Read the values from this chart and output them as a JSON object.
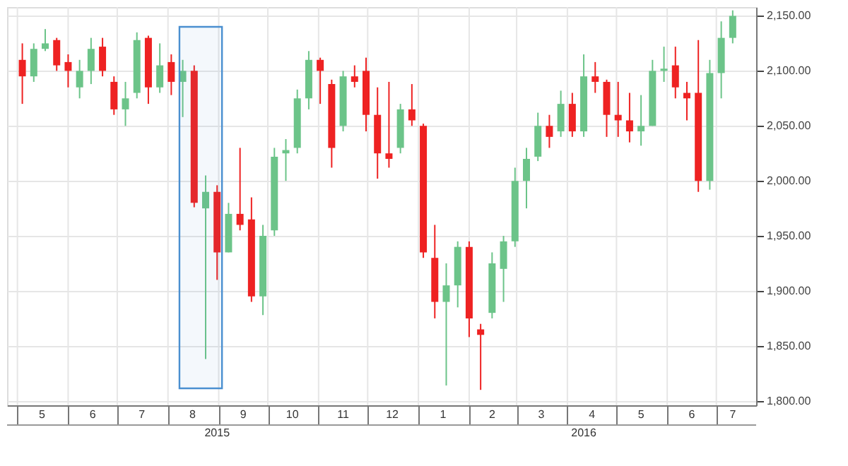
{
  "chart_data": {
    "type": "candlestick",
    "x": [
      "2015-05-04",
      "2015-05-11",
      "2015-05-18",
      "2015-05-25",
      "2015-06-01",
      "2015-06-08",
      "2015-06-15",
      "2015-06-22",
      "2015-06-29",
      "2015-07-06",
      "2015-07-13",
      "2015-07-20",
      "2015-07-27",
      "2015-08-03",
      "2015-08-10",
      "2015-08-17",
      "2015-08-24",
      "2015-08-31",
      "2015-09-07",
      "2015-09-14",
      "2015-09-21",
      "2015-09-28",
      "2015-10-05",
      "2015-10-12",
      "2015-10-19",
      "2015-10-26",
      "2015-11-02",
      "2015-11-09",
      "2015-11-16",
      "2015-11-23",
      "2015-11-30",
      "2015-12-07",
      "2015-12-14",
      "2015-12-21",
      "2015-12-28",
      "2016-01-04",
      "2016-01-11",
      "2016-01-18",
      "2016-01-25",
      "2016-02-01",
      "2016-02-08",
      "2016-02-15",
      "2016-02-22",
      "2016-02-29",
      "2016-03-07",
      "2016-03-14",
      "2016-03-21",
      "2016-03-28",
      "2016-04-04",
      "2016-04-11",
      "2016-04-18",
      "2016-04-25",
      "2016-05-02",
      "2016-05-09",
      "2016-05-16",
      "2016-05-23",
      "2016-05-30",
      "2016-06-06",
      "2016-06-13",
      "2016-06-20",
      "2016-06-27",
      "2016-07-04",
      "2016-07-11"
    ],
    "ohlc": [
      [
        2110,
        2125,
        2070,
        2095
      ],
      [
        2095,
        2125,
        2090,
        2120
      ],
      [
        2120,
        2138,
        2118,
        2125
      ],
      [
        2128,
        2130,
        2100,
        2105
      ],
      [
        2108,
        2115,
        2085,
        2100
      ],
      [
        2085,
        2110,
        2075,
        2100
      ],
      [
        2100,
        2130,
        2088,
        2120
      ],
      [
        2122,
        2130,
        2095,
        2100
      ],
      [
        2090,
        2095,
        2060,
        2065
      ],
      [
        2065,
        2090,
        2050,
        2075
      ],
      [
        2080,
        2135,
        2075,
        2128
      ],
      [
        2130,
        2132,
        2070,
        2085
      ],
      [
        2085,
        2125,
        2080,
        2105
      ],
      [
        2108,
        2115,
        2078,
        2090
      ],
      [
        2090,
        2110,
        2058,
        2100
      ],
      [
        2100,
        2105,
        1976,
        1980
      ],
      [
        1975,
        2005,
        1838,
        1990
      ],
      [
        1990,
        1996,
        1910,
        1935
      ],
      [
        1935,
        1980,
        1935,
        1970
      ],
      [
        1970,
        2030,
        1955,
        1960
      ],
      [
        1965,
        1985,
        1890,
        1895
      ],
      [
        1895,
        1960,
        1878,
        1950
      ],
      [
        1955,
        2030,
        1950,
        2022
      ],
      [
        2025,
        2038,
        2000,
        2028
      ],
      [
        2030,
        2083,
        2025,
        2075
      ],
      [
        2075,
        2118,
        2065,
        2110
      ],
      [
        2110,
        2112,
        2070,
        2100
      ],
      [
        2088,
        2092,
        2012,
        2030
      ],
      [
        2050,
        2100,
        2045,
        2095
      ],
      [
        2095,
        2105,
        2085,
        2090
      ],
      [
        2100,
        2112,
        2045,
        2060
      ],
      [
        2060,
        2085,
        2002,
        2025
      ],
      [
        2025,
        2090,
        2012,
        2020
      ],
      [
        2030,
        2070,
        2025,
        2065
      ],
      [
        2065,
        2088,
        2050,
        2055
      ],
      [
        2050,
        2052,
        1930,
        1935
      ],
      [
        1930,
        1960,
        1875,
        1890
      ],
      [
        1890,
        1925,
        1814,
        1905
      ],
      [
        1905,
        1945,
        1885,
        1940
      ],
      [
        1940,
        1945,
        1858,
        1875
      ],
      [
        1865,
        1870,
        1810,
        1860
      ],
      [
        1880,
        1935,
        1875,
        1925
      ],
      [
        1920,
        1950,
        1890,
        1945
      ],
      [
        1945,
        2012,
        1940,
        2000
      ],
      [
        2000,
        2030,
        1975,
        2020
      ],
      [
        2022,
        2062,
        2018,
        2050
      ],
      [
        2050,
        2060,
        2030,
        2040
      ],
      [
        2045,
        2082,
        2040,
        2070
      ],
      [
        2070,
        2080,
        2040,
        2045
      ],
      [
        2045,
        2115,
        2040,
        2095
      ],
      [
        2095,
        2108,
        2080,
        2090
      ],
      [
        2090,
        2092,
        2040,
        2060
      ],
      [
        2060,
        2090,
        2040,
        2055
      ],
      [
        2055,
        2080,
        2035,
        2045
      ],
      [
        2045,
        2078,
        2032,
        2050
      ],
      [
        2050,
        2110,
        2050,
        2100
      ],
      [
        2100,
        2122,
        2090,
        2102
      ],
      [
        2105,
        2122,
        2075,
        2085
      ],
      [
        2080,
        2090,
        2055,
        2075
      ],
      [
        2080,
        2128,
        1990,
        2000
      ],
      [
        2000,
        2110,
        1992,
        2098
      ],
      [
        2098,
        2145,
        2075,
        2130
      ],
      [
        2130,
        2155,
        2125,
        2150
      ]
    ],
    "colors": [
      "#ee2222",
      "#6cc489",
      "#6cc489",
      "#ee2222",
      "#ee2222",
      "#6cc489",
      "#6cc489",
      "#ee2222",
      "#ee2222",
      "#6cc489",
      "#6cc489",
      "#ee2222",
      "#6cc489",
      "#ee2222",
      "#6cc489",
      "#ee2222",
      "#6cc489",
      "#ee2222",
      "#6cc489",
      "#ee2222",
      "#ee2222",
      "#6cc489",
      "#6cc489",
      "#6cc489",
      "#6cc489",
      "#6cc489",
      "#ee2222",
      "#ee2222",
      "#6cc489",
      "#ee2222",
      "#ee2222",
      "#ee2222",
      "#ee2222",
      "#6cc489",
      "#ee2222",
      "#ee2222",
      "#ee2222",
      "#6cc489",
      "#6cc489",
      "#ee2222",
      "#ee2222",
      "#6cc489",
      "#6cc489",
      "#6cc489",
      "#6cc489",
      "#6cc489",
      "#ee2222",
      "#6cc489",
      "#ee2222",
      "#6cc489",
      "#ee2222",
      "#ee2222",
      "#ee2222",
      "#ee2222",
      "#6cc489",
      "#6cc489",
      "#6cc489",
      "#ee2222",
      "#ee2222",
      "#ee2222",
      "#6cc489",
      "#6cc489",
      "#6cc489"
    ],
    "xlim": [
      "2015-04-29",
      "2016-07-21"
    ],
    "xticks": [
      {
        "value": "2015-05-01",
        "label": null
      },
      {
        "value": "2015-05-16",
        "label": "5"
      },
      {
        "value": "2015-06-01",
        "label": null
      },
      {
        "value": "2015-06-16",
        "label": "6"
      },
      {
        "value": "2015-07-01",
        "label": null
      },
      {
        "value": "2015-07-16",
        "label": "7"
      },
      {
        "value": "2015-08-01",
        "label": null
      },
      {
        "value": "2015-08-16",
        "label": "8"
      },
      {
        "value": "2015-09-01",
        "label": null
      },
      {
        "value": "2015-09-16",
        "label": "9"
      },
      {
        "value": "2015-10-01",
        "label": null
      },
      {
        "value": "2015-10-16",
        "label": "10"
      },
      {
        "value": "2015-11-01",
        "label": null
      },
      {
        "value": "2015-11-16",
        "label": "11"
      },
      {
        "value": "2015-12-01",
        "label": null
      },
      {
        "value": "2015-12-16",
        "label": "12"
      },
      {
        "value": "2016-01-01",
        "label": null
      },
      {
        "value": "2016-01-16",
        "label": "1"
      },
      {
        "value": "2016-02-01",
        "label": null
      },
      {
        "value": "2016-02-15",
        "label": "2"
      },
      {
        "value": "2016-03-01",
        "label": null
      },
      {
        "value": "2016-03-16",
        "label": "3"
      },
      {
        "value": "2016-04-01",
        "label": null
      },
      {
        "value": "2016-04-16",
        "label": "4"
      },
      {
        "value": "2016-05-01",
        "label": null
      },
      {
        "value": "2016-05-16",
        "label": "5"
      },
      {
        "value": "2016-06-01",
        "label": null
      },
      {
        "value": "2016-06-16",
        "label": "6"
      },
      {
        "value": "2016-07-01",
        "label": null
      },
      {
        "value": "2016-07-11",
        "label": "7"
      }
    ],
    "x2lim": [
      "2015-04-29",
      "2016-07-21"
    ],
    "x2ticks": [
      {
        "value": "2015-08-31",
        "label": "2015"
      },
      {
        "value": "2016-04-11",
        "label": "2016"
      }
    ],
    "ylim": [
      1796,
      2158
    ],
    "yticks": [
      {
        "value": 1800,
        "label": "1,800.00"
      },
      {
        "value": 1850,
        "label": "1,850.00"
      },
      {
        "value": 1900,
        "label": "1,900.00"
      },
      {
        "value": 1950,
        "label": "1,950.00"
      },
      {
        "value": 2000,
        "label": "2,000.00"
      },
      {
        "value": 2050,
        "label": "2,050.00"
      },
      {
        "value": 2100,
        "label": "2,100.00"
      },
      {
        "value": 2150,
        "label": "2,150.00"
      }
    ],
    "bands": [
      {
        "axis": "x",
        "from": "2015-08-08",
        "to": "2015-09-03",
        "color": "#4a8fd0"
      }
    ],
    "grid": true
  }
}
